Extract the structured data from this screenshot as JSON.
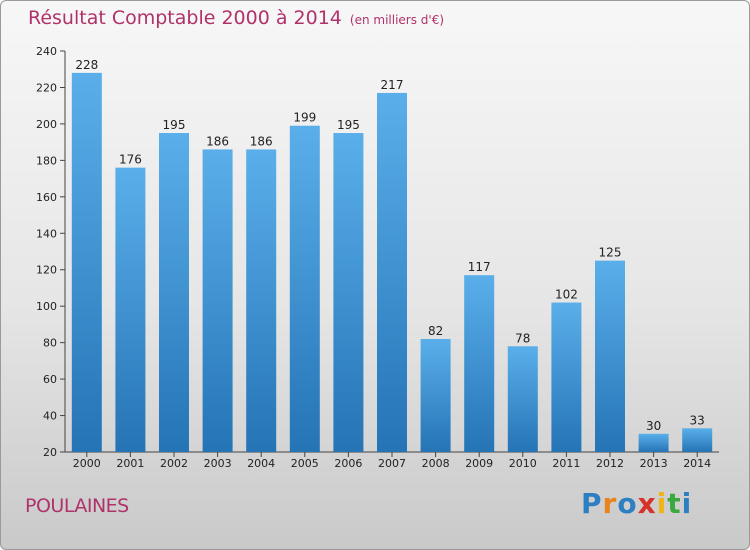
{
  "title": "Résultat Comptable 2000 à 2014",
  "title_unit": "(en milliers d'€)",
  "commune": "POULAINES",
  "logo": {
    "name": "Proxiti",
    "colors": [
      "#2e7fc1",
      "#e8831e",
      "#2e7fc1",
      "#d6322a",
      "#f0b417",
      "#3aa83f",
      "#2e7fc1"
    ]
  },
  "colors": {
    "title": "#b0326a",
    "bar_top": "#5aafea",
    "bar_bottom": "#2574b6",
    "axis": "#444444"
  },
  "chart_data": {
    "type": "bar",
    "title": "Résultat Comptable 2000 à 2014",
    "subtitle": "(en milliers d'€)",
    "xlabel": "",
    "ylabel": "",
    "ylim": [
      20,
      240
    ],
    "yticks": [
      20,
      40,
      60,
      80,
      100,
      120,
      140,
      160,
      180,
      200,
      220,
      240
    ],
    "grid": false,
    "categories": [
      "2000",
      "2001",
      "2002",
      "2003",
      "2004",
      "2005",
      "2006",
      "2007",
      "2008",
      "2009",
      "2010",
      "2011",
      "2012",
      "2013",
      "2014"
    ],
    "values": [
      228,
      176,
      195,
      186,
      186,
      199,
      195,
      217,
      82,
      117,
      78,
      102,
      125,
      30,
      33
    ]
  }
}
